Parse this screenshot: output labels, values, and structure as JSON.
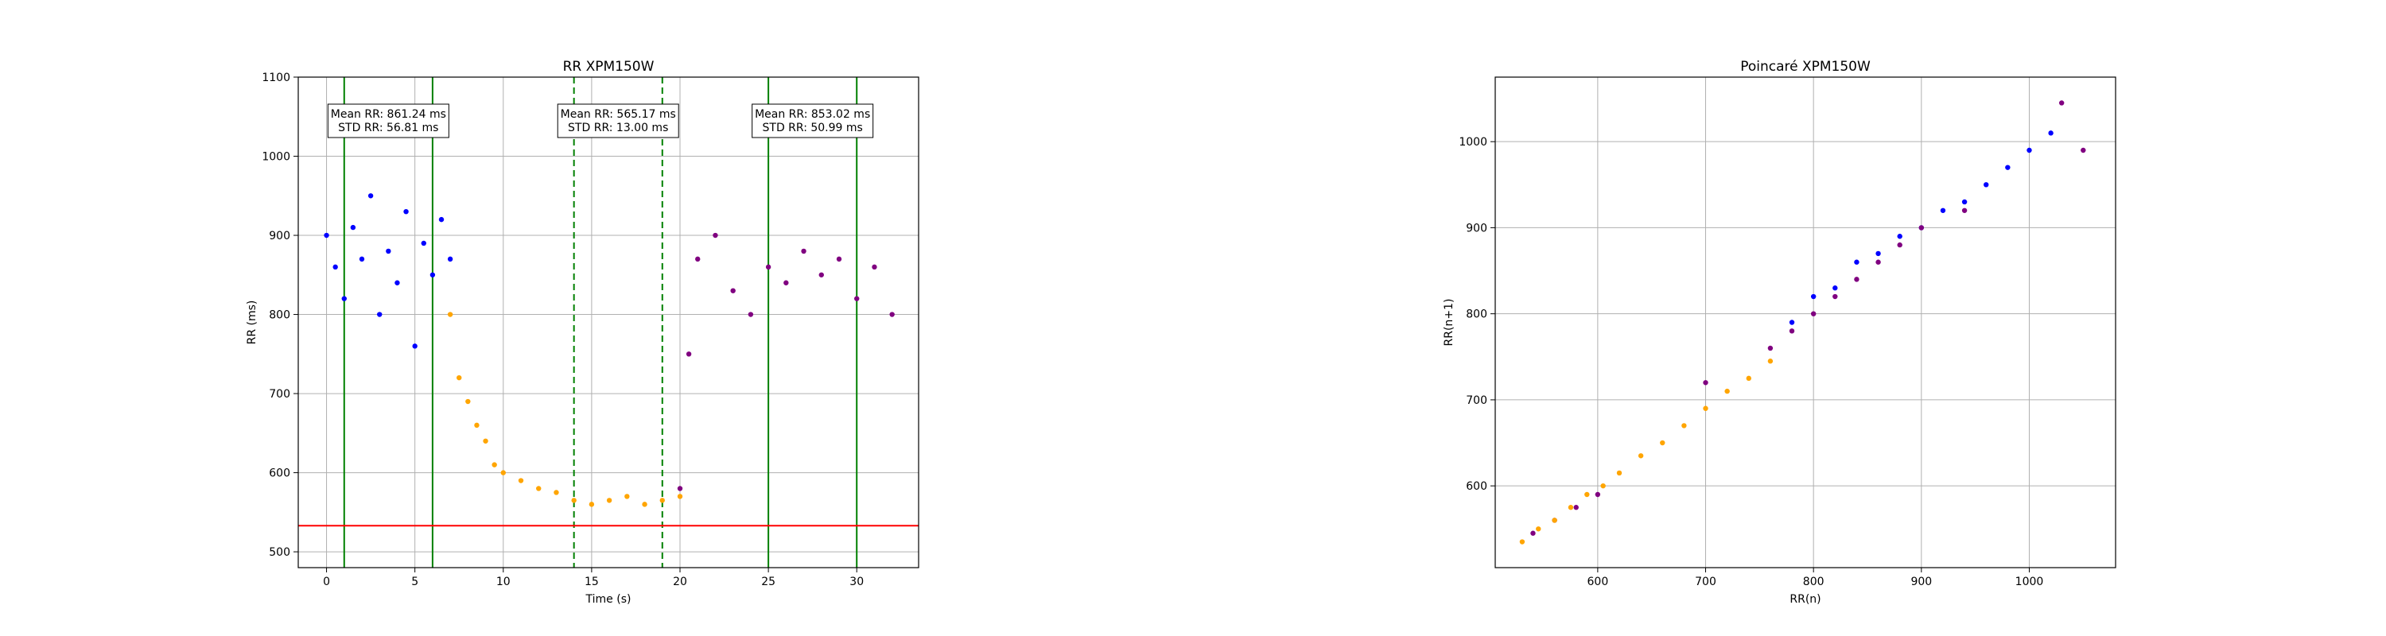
{
  "chart_data": [
    {
      "type": "scatter",
      "title": "RR XPM150W",
      "xlabel": "Time (s)",
      "ylabel": "RR (ms)",
      "xlim": [
        -1.6,
        33.5
      ],
      "ylim": [
        480,
        1100
      ],
      "xticks": [
        0,
        5,
        10,
        15,
        20,
        25,
        30
      ],
      "yticks": [
        500,
        600,
        700,
        800,
        900,
        1000,
        1100
      ],
      "grid": true,
      "colors": {
        "rest": "#0000ff",
        "exercise": "#ffa500",
        "recovery": "#800080",
        "windows": "#008000",
        "threshold": "#ff0000"
      },
      "windows": [
        {
          "start": 1,
          "end": 6,
          "style": "solid",
          "mean_text": "Mean RR: 861.24 ms",
          "std_text": "STD RR: 56.81 ms",
          "mean": 861.24,
          "std": 56.81
        },
        {
          "start": 14,
          "end": 19,
          "style": "dashed",
          "mean_text": "Mean RR: 565.17 ms",
          "std_text": "STD RR: 13.00 ms",
          "mean": 565.17,
          "std": 13.0
        },
        {
          "start": 25,
          "end": 30,
          "style": "solid",
          "mean_text": "Mean RR: 853.02 ms",
          "std_text": "STD RR: 50.99 ms",
          "mean": 853.02,
          "std": 50.99
        }
      ],
      "threshold_y": 533,
      "series": [
        {
          "color": "#0000ff",
          "x": [
            0.0,
            0.5,
            1.0,
            1.5,
            2.0,
            2.5,
            3.0,
            3.5,
            4.0,
            4.5,
            5.0,
            5.5,
            6.0,
            6.5,
            7.0
          ],
          "y": [
            900,
            860,
            820,
            910,
            870,
            950,
            800,
            880,
            840,
            930,
            760,
            890,
            850,
            920,
            870
          ]
        },
        {
          "color": "#ffa500",
          "x": [
            7.0,
            7.5,
            8.0,
            8.5,
            9.0,
            9.5,
            10.0,
            11.0,
            12.0,
            13.0,
            14.0,
            15.0,
            16.0,
            17.0,
            18.0,
            19.0,
            20.0
          ],
          "y": [
            800,
            720,
            690,
            660,
            640,
            610,
            600,
            590,
            580,
            575,
            565,
            560,
            565,
            570,
            560,
            565,
            570
          ]
        },
        {
          "color": "#800080",
          "x": [
            20.0,
            20.5,
            21.0,
            22.0,
            23.0,
            24.0,
            25.0,
            26.0,
            27.0,
            28.0,
            29.0,
            30.0,
            31.0,
            32.0
          ],
          "y": [
            580,
            750,
            870,
            900,
            830,
            800,
            860,
            840,
            880,
            850,
            870,
            820,
            860,
            800
          ]
        }
      ]
    },
    {
      "type": "scatter",
      "title": "Poincaré XPM150W",
      "xlabel": "RR(n)",
      "ylabel": "RR(n+1)",
      "xlim": [
        505,
        1080
      ],
      "ylim": [
        505,
        1075
      ],
      "xticks": [
        600,
        700,
        800,
        900,
        1000
      ],
      "yticks": [
        600,
        700,
        800,
        900,
        1000
      ],
      "grid": true,
      "series": [
        {
          "color": "#0000ff",
          "x": [
            780,
            800,
            820,
            840,
            860,
            880,
            900,
            920,
            940,
            960,
            980,
            1000,
            1020
          ],
          "y": [
            790,
            820,
            830,
            860,
            870,
            890,
            900,
            920,
            930,
            950,
            970,
            990,
            1010
          ]
        },
        {
          "color": "#800080",
          "x": [
            540,
            560,
            580,
            600,
            700,
            760,
            780,
            800,
            820,
            840,
            860,
            880,
            900,
            940,
            1030,
            1050
          ],
          "y": [
            545,
            560,
            575,
            590,
            720,
            760,
            780,
            800,
            820,
            840,
            860,
            880,
            900,
            920,
            1045,
            990
          ]
        },
        {
          "color": "#ffa500",
          "x": [
            530,
            545,
            560,
            575,
            590,
            605,
            620,
            640,
            660,
            680,
            700,
            720,
            740,
            760
          ],
          "y": [
            535,
            550,
            560,
            575,
            590,
            600,
            615,
            635,
            650,
            670,
            690,
            710,
            725,
            745
          ]
        }
      ]
    }
  ]
}
